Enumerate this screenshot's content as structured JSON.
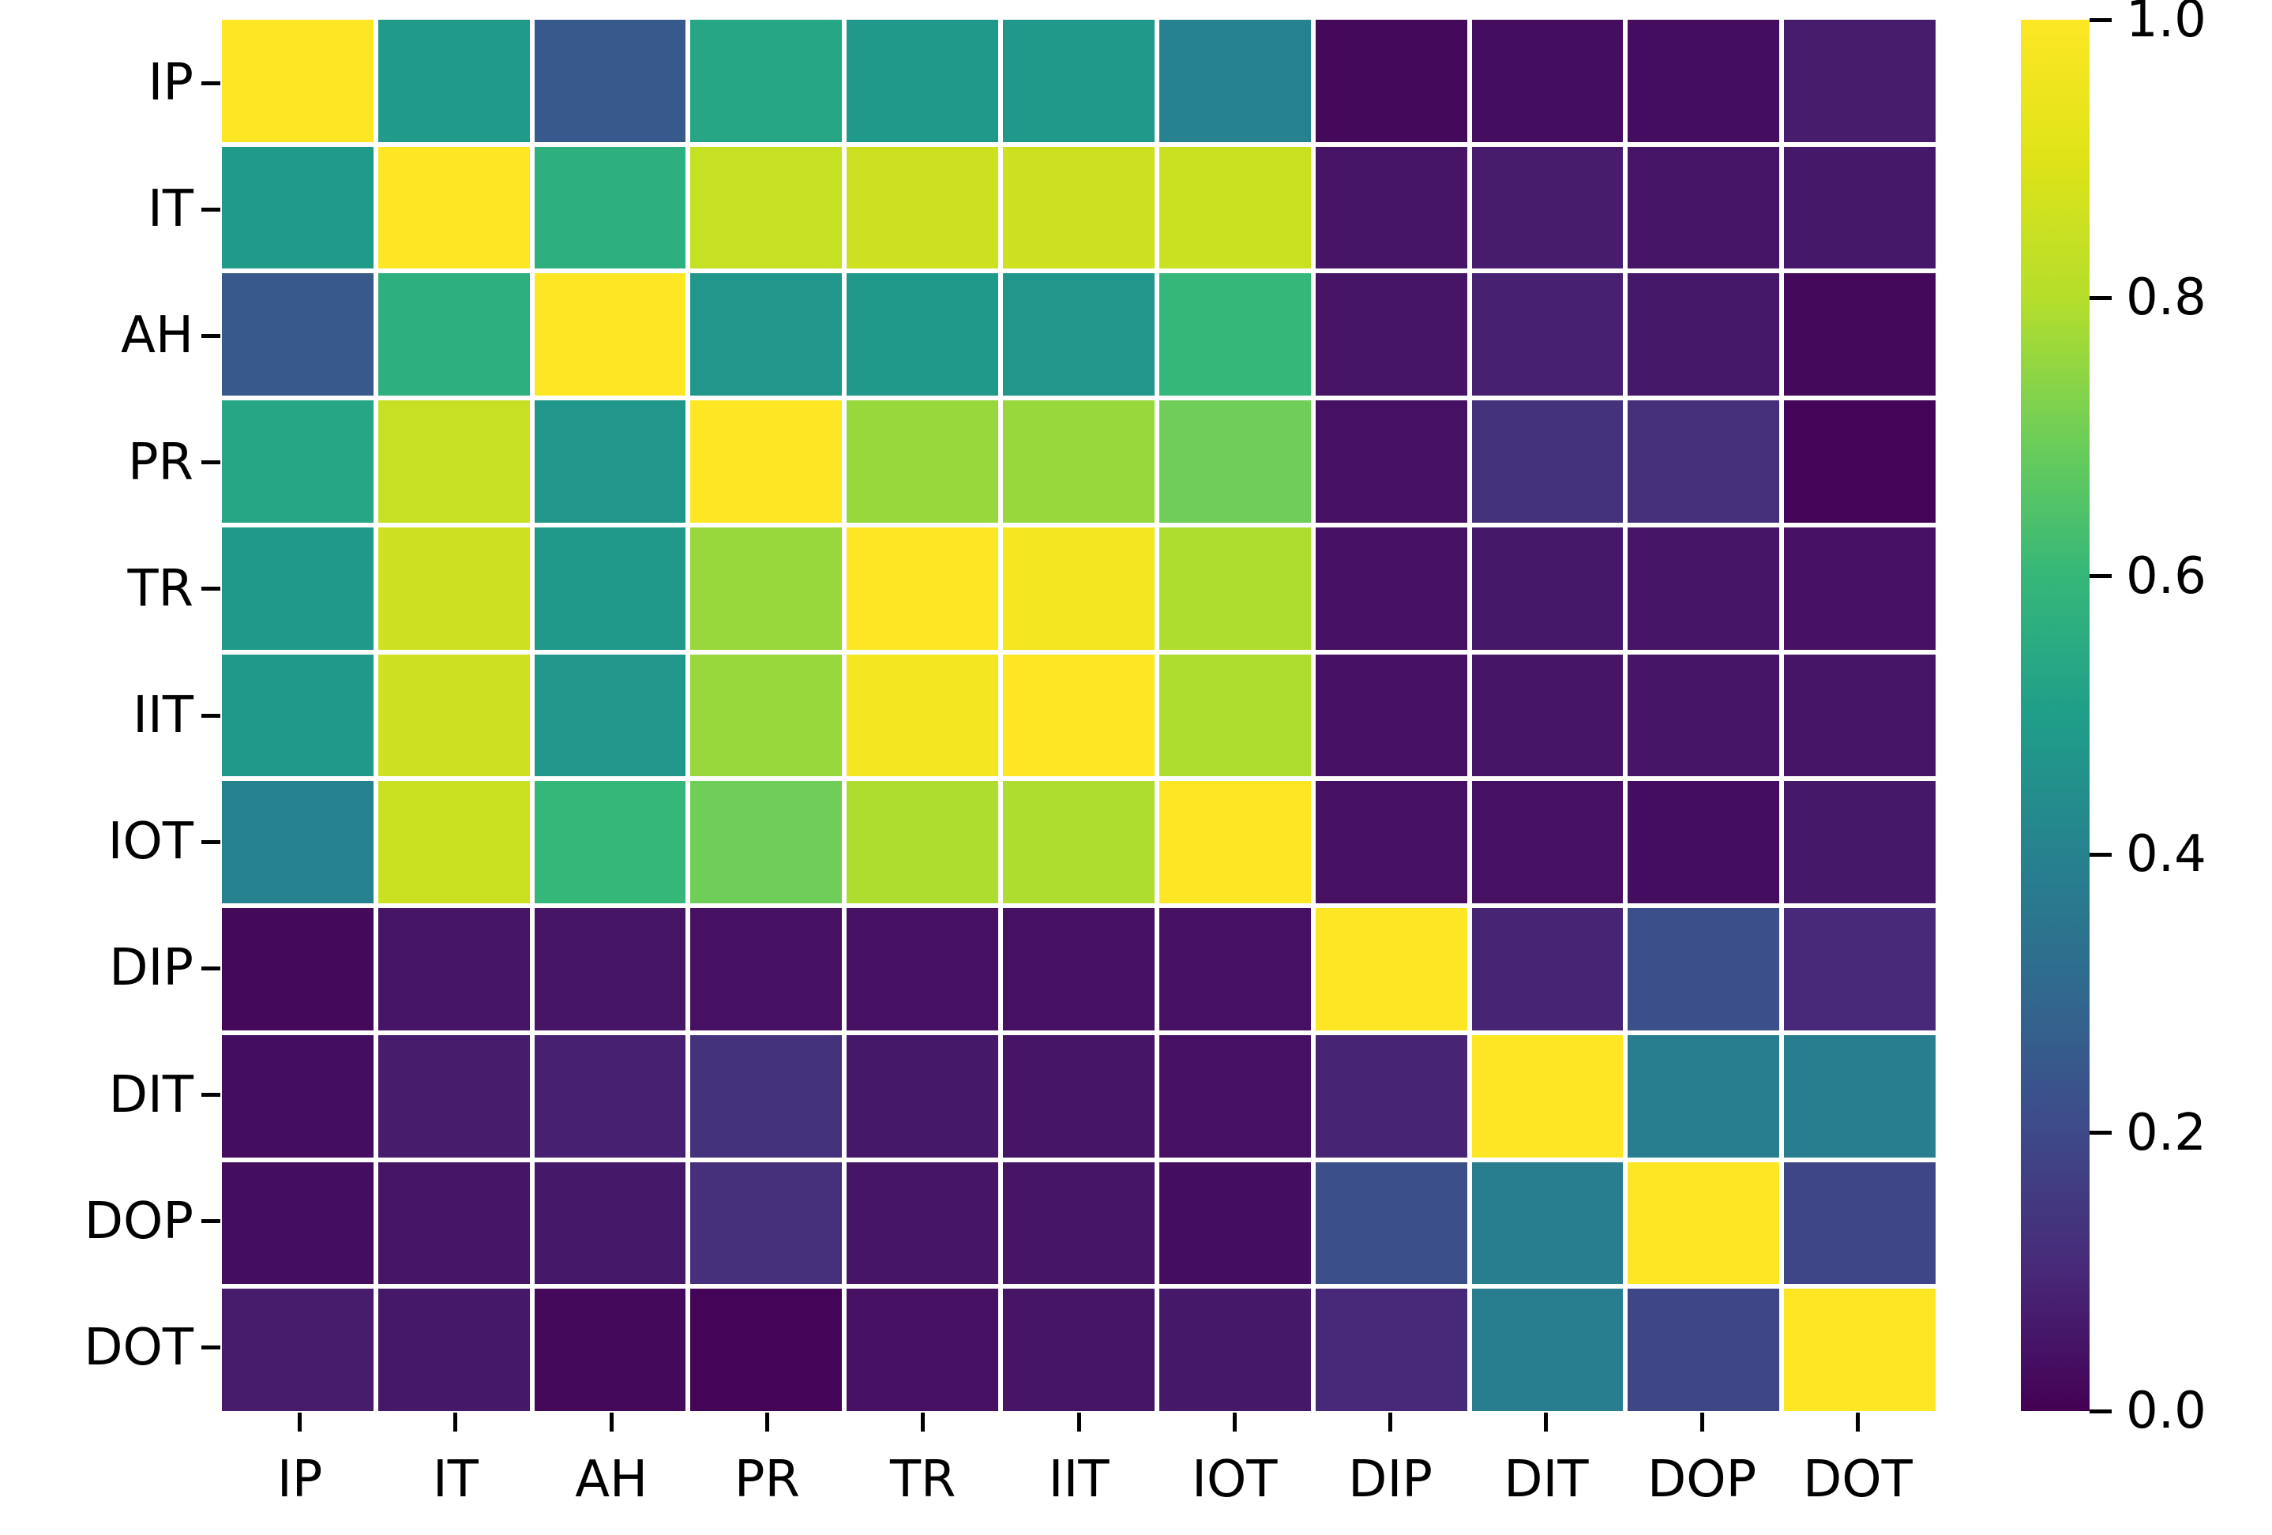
{
  "figure": {
    "background_color": "#ffffff",
    "grid_line_color": "#ffffff",
    "tick_color": "#000000",
    "label_color": "#000000"
  },
  "chart_data": {
    "type": "heatmap",
    "title": "",
    "xlabel": "",
    "ylabel": "",
    "categories": [
      "IP",
      "IT",
      "AH",
      "PR",
      "TR",
      "IIT",
      "IOT",
      "DIP",
      "DIT",
      "DOP",
      "DOT"
    ],
    "matrix": [
      [
        1.0,
        0.49,
        0.25,
        0.53,
        0.48,
        0.48,
        0.4,
        0.02,
        0.03,
        0.03,
        0.07
      ],
      [
        0.49,
        1.0,
        0.57,
        0.84,
        0.86,
        0.86,
        0.85,
        0.05,
        0.07,
        0.05,
        0.06
      ],
      [
        0.25,
        0.57,
        1.0,
        0.47,
        0.48,
        0.47,
        0.6,
        0.05,
        0.08,
        0.06,
        0.02
      ],
      [
        0.53,
        0.84,
        0.47,
        1.0,
        0.76,
        0.76,
        0.7,
        0.04,
        0.13,
        0.12,
        0.01
      ],
      [
        0.48,
        0.86,
        0.48,
        0.76,
        1.0,
        0.97,
        0.79,
        0.04,
        0.06,
        0.05,
        0.04
      ],
      [
        0.48,
        0.86,
        0.47,
        0.76,
        0.97,
        1.0,
        0.79,
        0.04,
        0.05,
        0.05,
        0.05
      ],
      [
        0.4,
        0.85,
        0.6,
        0.7,
        0.79,
        0.79,
        1.0,
        0.04,
        0.04,
        0.03,
        0.06
      ],
      [
        0.02,
        0.05,
        0.05,
        0.04,
        0.04,
        0.04,
        0.04,
        1.0,
        0.09,
        0.22,
        0.1
      ],
      [
        0.03,
        0.07,
        0.08,
        0.13,
        0.06,
        0.05,
        0.04,
        0.09,
        1.0,
        0.38,
        0.38
      ],
      [
        0.03,
        0.05,
        0.06,
        0.12,
        0.05,
        0.05,
        0.03,
        0.22,
        0.38,
        1.0,
        0.19
      ],
      [
        0.07,
        0.06,
        0.02,
        0.01,
        0.04,
        0.05,
        0.06,
        0.1,
        0.38,
        0.19,
        1.0
      ]
    ],
    "value_range": [
      0.0,
      1.0
    ],
    "colormap": {
      "name": "viridis",
      "stops": [
        "#440154",
        "#482878",
        "#3e4989",
        "#31688e",
        "#26828e",
        "#1f9e89",
        "#35b779",
        "#6ece58",
        "#b5de2b",
        "#dfe318",
        "#fde725"
      ]
    },
    "colorbar": {
      "tick_labels": [
        "1.0",
        "0.8",
        "0.6",
        "0.4",
        "0.2",
        "0.0"
      ],
      "tick_values": [
        1.0,
        0.8,
        0.6,
        0.4,
        0.2,
        0.0
      ],
      "position": "right"
    },
    "legend": null,
    "grid": false
  }
}
